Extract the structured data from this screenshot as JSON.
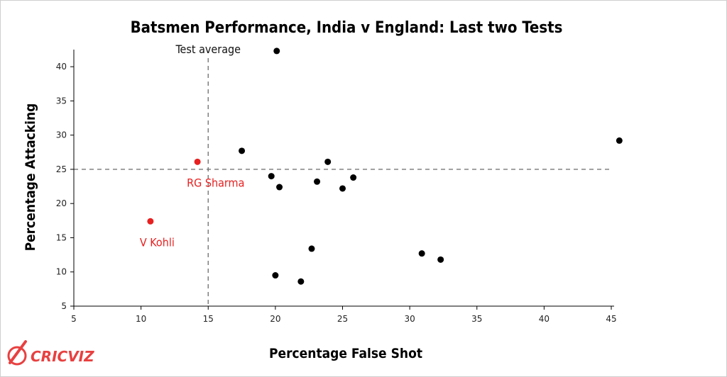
{
  "chart_data": {
    "type": "scatter",
    "title": "Batsmen Performance, India v England: Last two Tests",
    "xlabel": "Percentage False Shot",
    "ylabel": "Percentage Attacking",
    "xlim": [
      5,
      46
    ],
    "ylim": [
      5,
      43
    ],
    "xticks": [
      5,
      10,
      15,
      20,
      25,
      30,
      35,
      40,
      45
    ],
    "yticks": [
      5,
      10,
      15,
      20,
      25,
      30,
      35,
      40
    ],
    "reference_lines": [
      {
        "axis": "x",
        "value": 15,
        "label": "Test average"
      },
      {
        "axis": "y",
        "value": 25,
        "label": ""
      }
    ],
    "points": [
      {
        "x": 20.1,
        "y": 42.3,
        "label": "",
        "color": "#000000"
      },
      {
        "x": 45.6,
        "y": 29.2,
        "label": "",
        "color": "#000000"
      },
      {
        "x": 17.5,
        "y": 27.7,
        "label": "",
        "color": "#000000"
      },
      {
        "x": 14.2,
        "y": 26.1,
        "label": "RG Sharma",
        "color": "#e82020"
      },
      {
        "x": 23.9,
        "y": 26.1,
        "label": "",
        "color": "#000000"
      },
      {
        "x": 19.7,
        "y": 24.0,
        "label": "",
        "color": "#000000"
      },
      {
        "x": 25.8,
        "y": 23.8,
        "label": "",
        "color": "#000000"
      },
      {
        "x": 23.1,
        "y": 23.2,
        "label": "",
        "color": "#000000"
      },
      {
        "x": 20.3,
        "y": 22.4,
        "label": "",
        "color": "#000000"
      },
      {
        "x": 25.0,
        "y": 22.2,
        "label": "",
        "color": "#000000"
      },
      {
        "x": 10.7,
        "y": 17.4,
        "label": "V Kohli",
        "color": "#e82020"
      },
      {
        "x": 22.7,
        "y": 13.4,
        "label": "",
        "color": "#000000"
      },
      {
        "x": 30.9,
        "y": 12.7,
        "label": "",
        "color": "#000000"
      },
      {
        "x": 32.3,
        "y": 11.8,
        "label": "",
        "color": "#000000"
      },
      {
        "x": 20.0,
        "y": 9.5,
        "label": "",
        "color": "#000000"
      },
      {
        "x": 21.9,
        "y": 8.6,
        "label": "",
        "color": "#000000"
      }
    ],
    "grid": false,
    "legend": "none"
  },
  "branding": {
    "logo_text": "CRICVIZ",
    "logo_color": "#e84040"
  }
}
